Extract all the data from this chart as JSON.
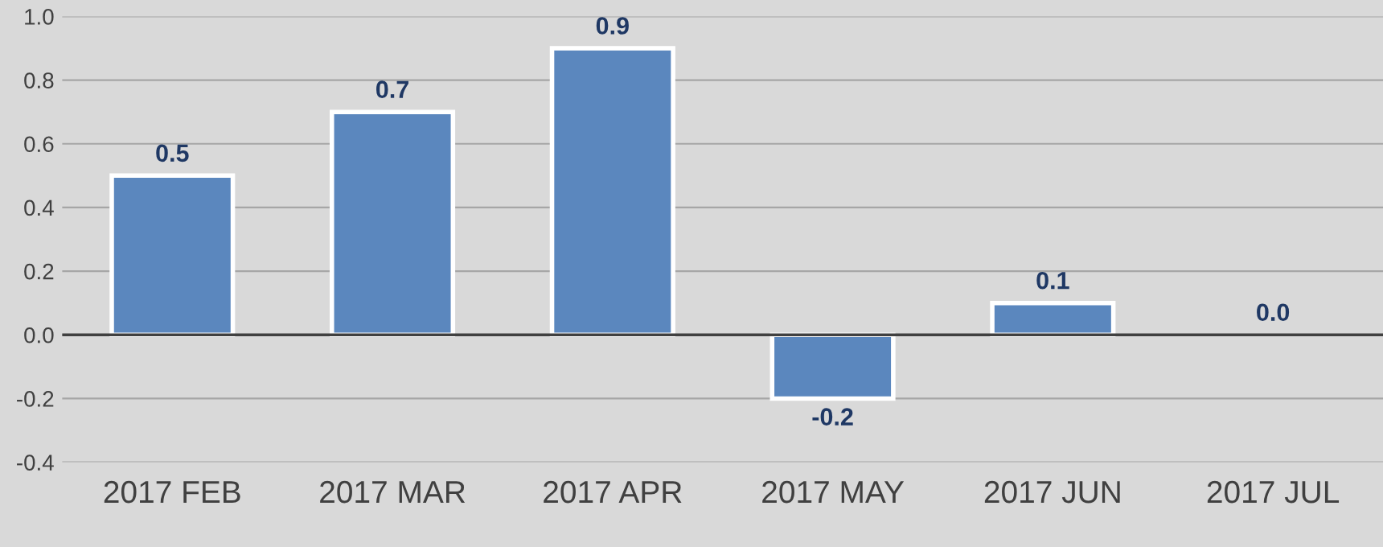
{
  "chart_data": {
    "type": "bar",
    "categories": [
      "2017 FEB",
      "2017 MAR",
      "2017 APR",
      "2017 MAY",
      "2017 JUN",
      "2017 JUL"
    ],
    "values": [
      0.5,
      0.7,
      0.9,
      -0.2,
      0.1,
      0.0
    ],
    "value_labels": [
      "0.5",
      "0.7",
      "0.9",
      "-0.2",
      "0.1",
      "0.0"
    ],
    "color": "#5b87be",
    "ylim": [
      -0.4,
      1.0
    ],
    "yticks": [
      {
        "value": -0.4,
        "label": "-0.4"
      },
      {
        "value": -0.2,
        "label": "-0.2"
      },
      {
        "value": 0.0,
        "label": "0.0"
      },
      {
        "value": 0.2,
        "label": "0.2"
      },
      {
        "value": 0.4,
        "label": "0.4"
      },
      {
        "value": 0.6,
        "label": "0.6"
      },
      {
        "value": 0.8,
        "label": "0.8"
      },
      {
        "value": 1.0,
        "label": "1.0"
      }
    ],
    "grid": "y"
  }
}
